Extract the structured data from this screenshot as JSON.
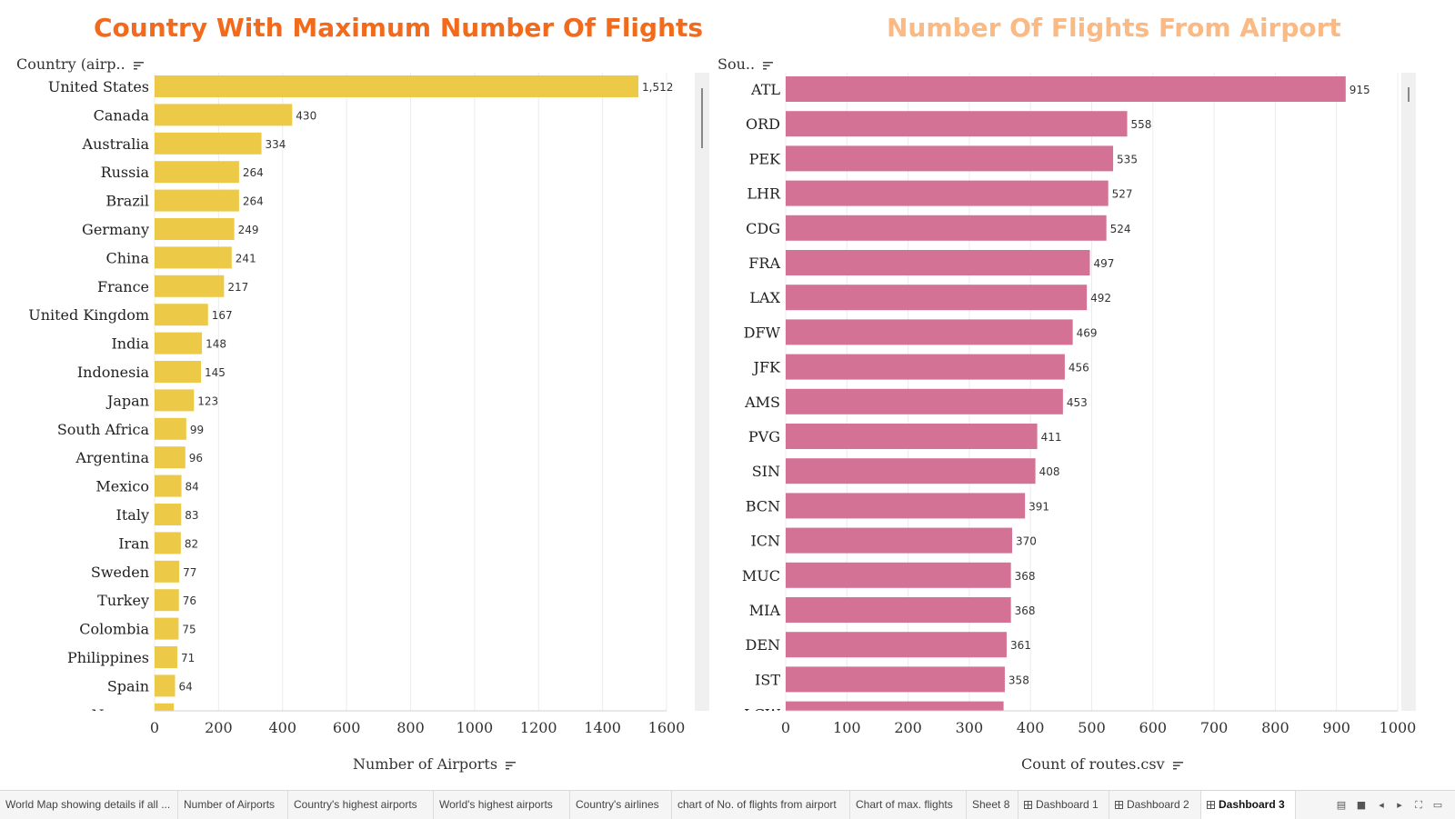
{
  "dashboard": {
    "left_title": "Country With Maximum Number Of Flights",
    "right_title": "Number Of Flights From Airport",
    "colors": {
      "left_title": "#f26a1b",
      "right_title": "#fbb984",
      "left_bar": "#edc948",
      "right_bar": "#d37295",
      "active_tab": "#ffffff"
    }
  },
  "chart_data": [
    {
      "type": "bar",
      "orientation": "horizontal",
      "title": "Country With Maximum Number Of Flights",
      "ylabel": "Country (airp..",
      "xlabel": "Number of Airports",
      "xlim": [
        0,
        1600
      ],
      "xticks": [
        0,
        200,
        400,
        600,
        800,
        1000,
        1200,
        1400,
        1600
      ],
      "xtick_labels": [
        "0",
        "200",
        "400",
        "600",
        "800",
        "1000",
        "1200",
        "1400",
        "1600"
      ],
      "grid": true,
      "categories": [
        "United States",
        "Canada",
        "Australia",
        "Russia",
        "Brazil",
        "Germany",
        "China",
        "France",
        "United Kingdom",
        "India",
        "Indonesia",
        "Japan",
        "South Africa",
        "Argentina",
        "Mexico",
        "Italy",
        "Iran",
        "Sweden",
        "Turkey",
        "Colombia",
        "Philippines",
        "Spain",
        "Norway"
      ],
      "values": [
        1512,
        430,
        334,
        264,
        264,
        249,
        241,
        217,
        167,
        148,
        145,
        123,
        99,
        96,
        84,
        83,
        82,
        77,
        76,
        75,
        71,
        64,
        60
      ],
      "value_labels": [
        "1,512",
        "430",
        "334",
        "264",
        "264",
        "249",
        "241",
        "217",
        "167",
        "148",
        "145",
        "123",
        "99",
        "96",
        "84",
        "83",
        "82",
        "77",
        "76",
        "75",
        "71",
        "64",
        ""
      ]
    },
    {
      "type": "bar",
      "orientation": "horizontal",
      "title": "Number Of Flights From Airport",
      "ylabel": "Sou..",
      "xlabel": "Count of routes.csv",
      "xlim": [
        0,
        1000
      ],
      "xticks": [
        0,
        100,
        200,
        300,
        400,
        500,
        600,
        700,
        800,
        900,
        1000
      ],
      "xtick_labels": [
        "0",
        "100",
        "200",
        "300",
        "400",
        "500",
        "600",
        "700",
        "800",
        "900",
        "1000"
      ],
      "grid": true,
      "categories": [
        "ATL",
        "ORD",
        "PEK",
        "LHR",
        "CDG",
        "FRA",
        "LAX",
        "DFW",
        "JFK",
        "AMS",
        "PVG",
        "SIN",
        "BCN",
        "ICN",
        "MUC",
        "MIA",
        "DEN",
        "IST",
        "LGW"
      ],
      "values": [
        915,
        558,
        535,
        527,
        524,
        497,
        492,
        469,
        456,
        453,
        411,
        408,
        391,
        370,
        368,
        368,
        361,
        358,
        356
      ],
      "value_labels": [
        "915",
        "558",
        "535",
        "527",
        "524",
        "497",
        "492",
        "469",
        "456",
        "453",
        "411",
        "408",
        "391",
        "370",
        "368",
        "368",
        "361",
        "358",
        ""
      ]
    }
  ],
  "tabs": [
    {
      "label": "World Map showing details if all ...",
      "type": "sheet",
      "active": false
    },
    {
      "label": "Number of Airports",
      "type": "sheet",
      "active": false
    },
    {
      "label": "Country's highest airports",
      "type": "sheet",
      "active": false
    },
    {
      "label": "World's highest airports",
      "type": "sheet",
      "active": false
    },
    {
      "label": "Country's airlines",
      "type": "sheet",
      "active": false
    },
    {
      "label": "chart of No. of flights from airport",
      "type": "sheet",
      "active": false
    },
    {
      "label": "Chart of max. flights",
      "type": "sheet",
      "active": false
    },
    {
      "label": "Sheet 8",
      "type": "sheet",
      "active": false
    },
    {
      "label": "Dashboard 1",
      "type": "dashboard",
      "active": false
    },
    {
      "label": "Dashboard 2",
      "type": "dashboard",
      "active": false
    },
    {
      "label": "Dashboard 3",
      "type": "dashboard",
      "active": true
    }
  ],
  "tabbar_controls": [
    "filmstrip-view-icon",
    "tab-view-icon",
    "prev-sheet-icon",
    "next-sheet-icon",
    "fit-icon",
    "present-icon"
  ]
}
